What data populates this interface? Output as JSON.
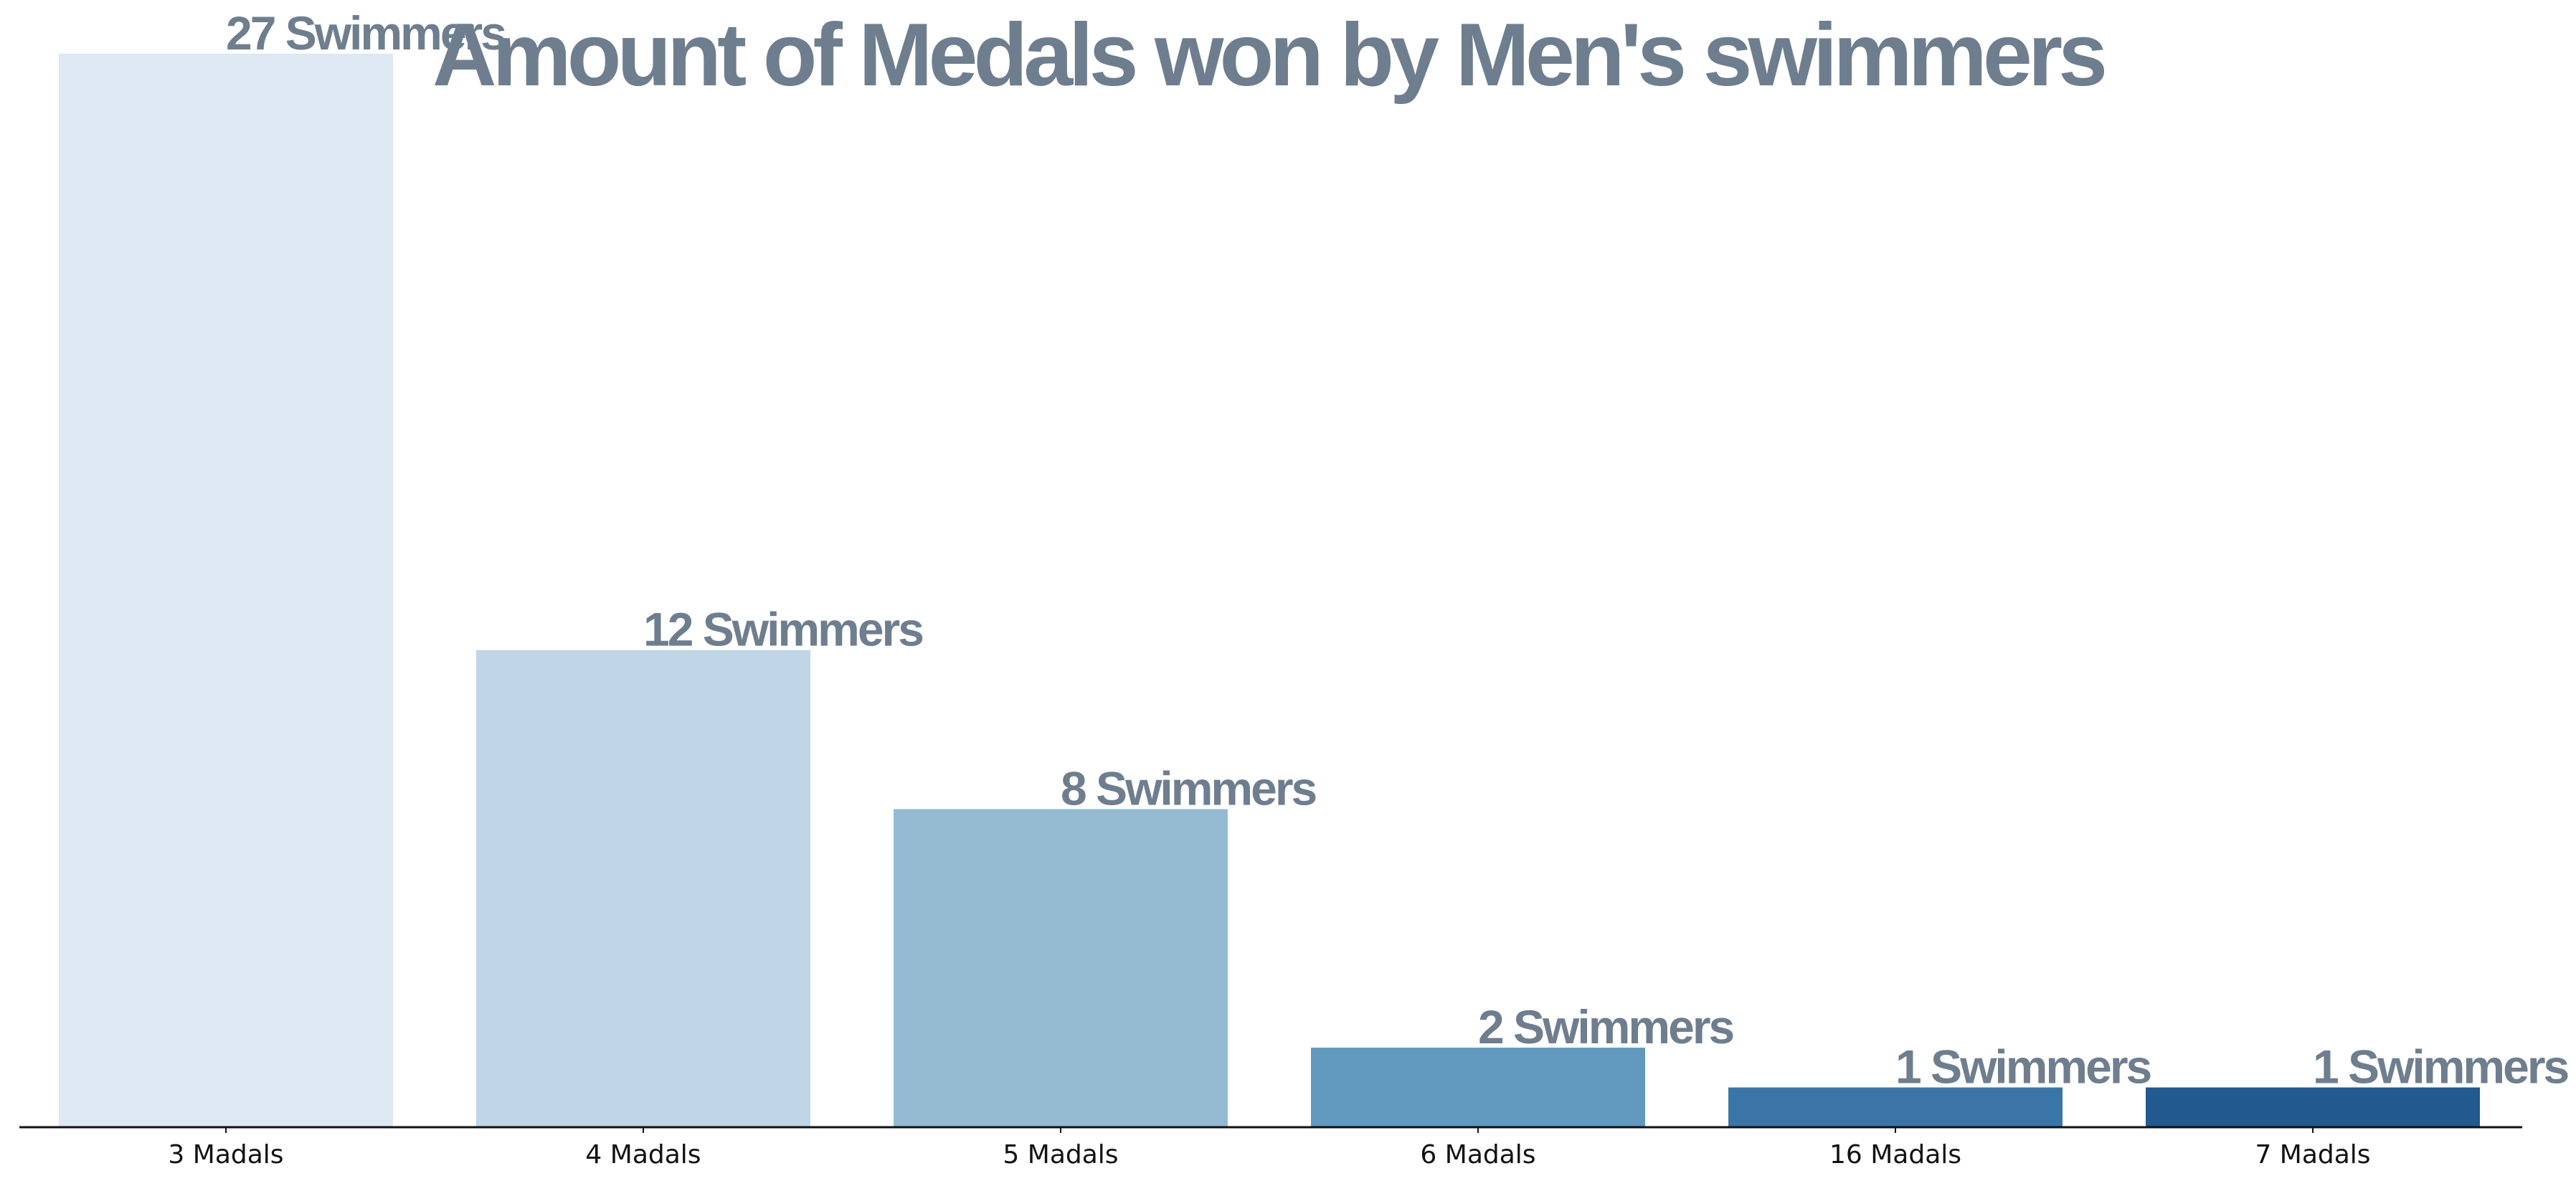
{
  "chart_data": {
    "type": "bar",
    "title": "Amount of Medals won by Men's swimmers",
    "categories": [
      "3 Madals",
      "4 Madals",
      "5 Madals",
      "6 Madals",
      "16 Madals",
      "7 Madals"
    ],
    "values": [
      27,
      12,
      8,
      2,
      1,
      1
    ],
    "data_labels": [
      "27 Swimmers",
      "12 Swimmers",
      "8 Swimmers",
      "2 Swimmers",
      "1 Swimmers",
      "1 Swimmers"
    ],
    "colors": [
      "#dee8f3",
      "#c0d5e6",
      "#95bbd3",
      "#6198be",
      "#3b75a8",
      "#215a8e"
    ],
    "text_color": "#6e7e8f",
    "axis_color": "#111111",
    "xlabel": "",
    "ylabel": "",
    "ylim": [
      0,
      28.35
    ],
    "grid": false,
    "legend": "none"
  }
}
